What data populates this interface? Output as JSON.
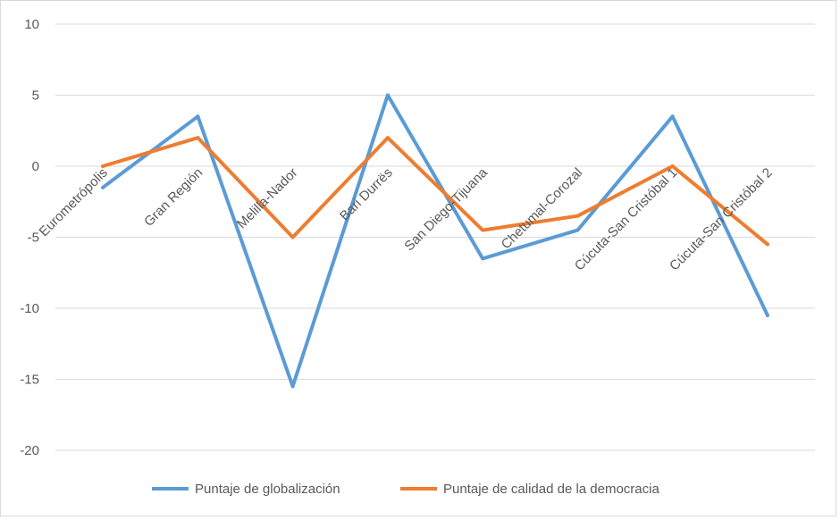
{
  "chart_data": {
    "type": "line",
    "categories": [
      "Eurometrópolis",
      "Gran Región",
      "Melilla-Nador",
      "Bari Durrës",
      "San Diego-Tijuana",
      "Chetumal-Corozal",
      "Cúcuta-San Cristóbal 1",
      "Cúcuta-San Cristóbal 2"
    ],
    "series": [
      {
        "name": "Puntaje de globalización",
        "color": "#5b9bd5",
        "values": [
          -1.5,
          3.5,
          -15.5,
          5,
          -6.5,
          -4.5,
          3.5,
          -10.5
        ]
      },
      {
        "name": "Puntaje de calidad de la democracia",
        "color": "#ed7d31",
        "values": [
          0,
          2,
          -5,
          2,
          -4.5,
          -3.5,
          0,
          -5.5
        ]
      }
    ],
    "ylim": [
      -20,
      10
    ],
    "yticks": [
      10,
      5,
      0,
      -5,
      -10,
      -15,
      -20
    ],
    "grid": true,
    "legend": "bottom",
    "title": "",
    "xlabel": "",
    "ylabel": ""
  }
}
